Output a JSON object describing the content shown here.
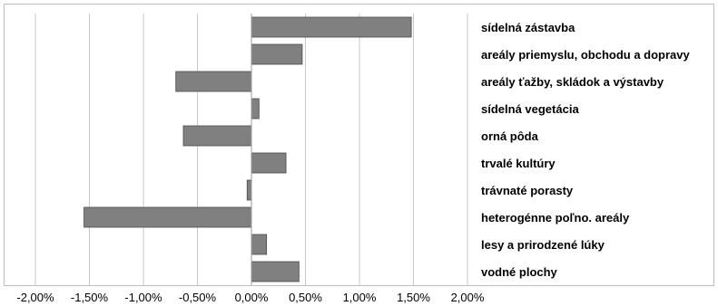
{
  "chart_data": {
    "type": "bar",
    "orientation": "horizontal",
    "categories": [
      "sídelná zástavba",
      "areály priemyslu, obchodu a dopravy",
      "areály ťažby, skládok a výstavby",
      "sídelná vegetácia",
      "orná pôda",
      "trvalé kultúry",
      "trávnaté porasty",
      "heterogénne poľno. areály",
      "lesy a prirodzené lúky",
      "vodné plochy"
    ],
    "values": [
      1.48,
      0.47,
      -0.7,
      0.07,
      -0.63,
      0.32,
      -0.04,
      -1.55,
      0.14,
      0.44
    ],
    "xlim": [
      -2.0,
      2.0
    ],
    "xticks": [
      -2.0,
      -1.5,
      -1.0,
      -0.5,
      0.0,
      0.5,
      1.0,
      1.5,
      2.0
    ],
    "xtick_labels": [
      "-2,00%",
      "-1,50%",
      "-1,00%",
      "-0,50%",
      "0,00%",
      "0,50%",
      "1,00%",
      "1,50%",
      "2,00%"
    ],
    "grid": "vertical",
    "bar_color": "#808080",
    "title": "",
    "xlabel": "",
    "ylabel": ""
  }
}
